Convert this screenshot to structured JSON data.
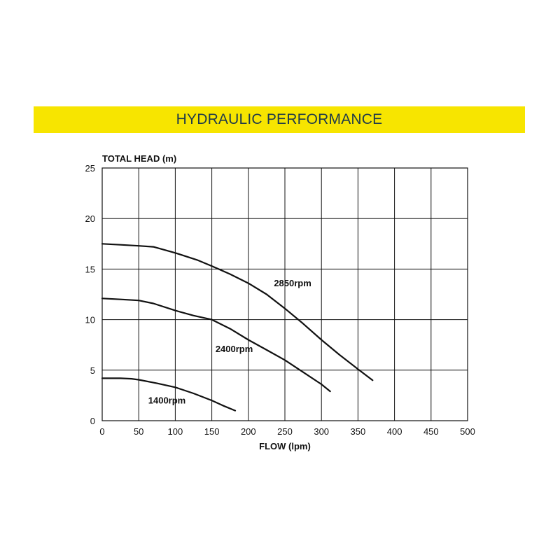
{
  "banner": {
    "title": "HYDRAULIC PERFORMANCE"
  },
  "chart_data": {
    "type": "line",
    "title": "HYDRAULIC PERFORMANCE",
    "xlabel": "FLOW (lpm)",
    "ylabel": "TOTAL HEAD (m)",
    "xlim": [
      0,
      500
    ],
    "ylim": [
      0,
      25
    ],
    "x_ticks": [
      0,
      50,
      100,
      150,
      200,
      250,
      300,
      350,
      400,
      450,
      500
    ],
    "y_ticks": [
      0,
      5,
      10,
      15,
      20,
      25
    ],
    "grid": true,
    "series": [
      {
        "name": "2850rpm",
        "label": "2850rpm",
        "label_at": [
          235,
          13.3
        ],
        "points": [
          [
            0,
            17.5
          ],
          [
            25,
            17.4
          ],
          [
            50,
            17.3
          ],
          [
            70,
            17.2
          ],
          [
            100,
            16.6
          ],
          [
            130,
            15.9
          ],
          [
            150,
            15.3
          ],
          [
            175,
            14.5
          ],
          [
            200,
            13.6
          ],
          [
            225,
            12.5
          ],
          [
            250,
            11.1
          ],
          [
            275,
            9.6
          ],
          [
            300,
            8.0
          ],
          [
            325,
            6.5
          ],
          [
            350,
            5.1
          ],
          [
            370,
            4.0
          ]
        ]
      },
      {
        "name": "2400rpm",
        "label": "2400rpm",
        "label_at": [
          155,
          6.8
        ],
        "points": [
          [
            0,
            12.1
          ],
          [
            25,
            12.0
          ],
          [
            50,
            11.9
          ],
          [
            70,
            11.6
          ],
          [
            100,
            10.9
          ],
          [
            125,
            10.4
          ],
          [
            150,
            10.0
          ],
          [
            175,
            9.1
          ],
          [
            200,
            8.0
          ],
          [
            225,
            7.0
          ],
          [
            250,
            6.0
          ],
          [
            275,
            4.8
          ],
          [
            300,
            3.6
          ],
          [
            312,
            2.9
          ]
        ]
      },
      {
        "name": "1400rpm",
        "label": "1400rpm",
        "label_at": [
          63,
          1.7
        ],
        "points": [
          [
            0,
            4.2
          ],
          [
            25,
            4.2
          ],
          [
            40,
            4.15
          ],
          [
            50,
            4.05
          ],
          [
            75,
            3.7
          ],
          [
            100,
            3.3
          ],
          [
            125,
            2.7
          ],
          [
            150,
            2.0
          ],
          [
            165,
            1.5
          ],
          [
            182,
            1.0
          ]
        ]
      }
    ]
  }
}
